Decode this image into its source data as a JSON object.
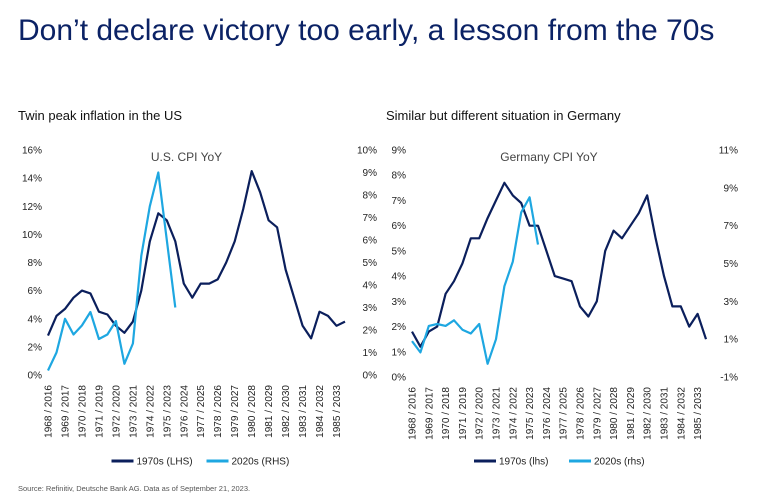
{
  "title": "Don’t declare victory too early, a lesson from the 70s",
  "source": "Source: Refinitiv, Deutsche Bank AG. Data as of September 21, 2023.",
  "chart_data": [
    {
      "type": "line",
      "title": "Twin peak inflation in the US",
      "annotation": "U.S. CPI YoY",
      "categories": [
        "1968 / 2016",
        null,
        "1969 / 2017",
        null,
        "1970 / 2018",
        null,
        "1971 / 2019",
        null,
        "1972 / 2020",
        null,
        "1973 / 2021",
        null,
        "1974 / 2022",
        null,
        "1975 / 2023",
        null,
        "1976 / 2024",
        null,
        "1977 / 2025",
        null,
        "1978 / 2026",
        null,
        "1979 / 2027",
        null,
        "1980 / 2028",
        null,
        "1981 / 2029",
        null,
        "1982 / 2030",
        null,
        "1983 / 2031",
        null,
        "1984 / 2032",
        null,
        "1985 / 2033",
        null
      ],
      "series": [
        {
          "name": "1970s (LHS)",
          "color": "#0b1f5c",
          "values": [
            2.8,
            4.2,
            4.7,
            5.5,
            6.0,
            5.8,
            4.5,
            4.3,
            3.5,
            3.0,
            3.8,
            6.0,
            9.5,
            11.5,
            11.0,
            9.5,
            6.5,
            5.5,
            6.5,
            6.5,
            6.8,
            8.0,
            9.5,
            11.8,
            14.5,
            13.0,
            11.0,
            10.5,
            7.5,
            5.5,
            3.5,
            2.6,
            4.5,
            4.2,
            3.5,
            3.8
          ]
        },
        {
          "name": "2020s (RHS)",
          "color": "#1ea7e1",
          "axis": "y2",
          "values": [
            0.2,
            1.0,
            2.5,
            1.8,
            2.2,
            2.8,
            1.6,
            1.8,
            2.4,
            0.5,
            1.4,
            5.3,
            7.5,
            9.0,
            6.0,
            3.0,
            null,
            null,
            null,
            null,
            null,
            null,
            null,
            null,
            null,
            null,
            null,
            null,
            null,
            null,
            null,
            null,
            null,
            null,
            null,
            null
          ]
        }
      ],
      "ylim": [
        0,
        16
      ],
      "yticks": [
        {
          "value": 0,
          "label": "0%"
        },
        {
          "value": 2,
          "label": "2%"
        },
        {
          "value": 4,
          "label": "4%"
        },
        {
          "value": 6,
          "label": "6%"
        },
        {
          "value": 8,
          "label": "8%"
        },
        {
          "value": 10,
          "label": "10%"
        },
        {
          "value": 12,
          "label": "12%"
        },
        {
          "value": 14,
          "label": "14%"
        },
        {
          "value": 16,
          "label": "16%"
        }
      ],
      "y2lim": [
        0,
        10
      ],
      "y2ticks": [
        {
          "value": 0,
          "label": "0%"
        },
        {
          "value": 1,
          "label": "1%"
        },
        {
          "value": 2,
          "label": "2%"
        },
        {
          "value": 3,
          "label": "3%"
        },
        {
          "value": 4,
          "label": "4%"
        },
        {
          "value": 5,
          "label": "5%"
        },
        {
          "value": 6,
          "label": "6%"
        },
        {
          "value": 7,
          "label": "7%"
        },
        {
          "value": 8,
          "label": "8%"
        },
        {
          "value": 9,
          "label": "9%"
        },
        {
          "value": 10,
          "label": "10%"
        }
      ]
    },
    {
      "type": "line",
      "title": "Similar but different situation in Germany",
      "annotation": "Germany CPI YoY",
      "categories": [
        "1968 / 2016",
        null,
        "1969 / 2017",
        null,
        "1970 / 2018",
        null,
        "1971 / 2019",
        null,
        "1972 / 2020",
        null,
        "1973 / 2021",
        null,
        "1974 / 2022",
        null,
        "1975 / 2023",
        null,
        "1976 / 2024",
        null,
        "1977 / 2025",
        null,
        "1978 / 2026",
        null,
        "1979 / 2027",
        null,
        "1980 / 2028",
        null,
        "1981 / 2029",
        null,
        "1982 / 2030",
        null,
        "1983 / 2031",
        null,
        "1984 / 2032",
        null,
        "1985 / 2033",
        null
      ],
      "series": [
        {
          "name": "1970s (lhs)",
          "color": "#0b1f5c",
          "values": [
            1.8,
            1.2,
            1.8,
            2.0,
            3.3,
            3.8,
            4.5,
            5.5,
            5.5,
            6.3,
            7.0,
            7.7,
            7.2,
            6.9,
            6.0,
            6.0,
            5.0,
            4.0,
            3.9,
            3.8,
            2.8,
            2.4,
            3.0,
            5.0,
            5.8,
            5.5,
            6.0,
            6.5,
            7.2,
            5.5,
            4.0,
            2.8,
            2.8,
            2.0,
            2.5,
            1.5
          ]
        },
        {
          "name": "2020s (rhs)",
          "color": "#1ea7e1",
          "axis": "y2",
          "values": [
            0.9,
            0.3,
            1.7,
            1.8,
            1.7,
            2.0,
            1.5,
            1.3,
            1.8,
            -0.3,
            1.0,
            3.8,
            5.1,
            7.7,
            8.5,
            6.0,
            null,
            null,
            null,
            null,
            null,
            null,
            null,
            null,
            null,
            null,
            null,
            null,
            null,
            null,
            null,
            null,
            null,
            null,
            null,
            null
          ]
        }
      ],
      "ylim": [
        0,
        9
      ],
      "yticks": [
        {
          "value": 0,
          "label": "0%"
        },
        {
          "value": 1,
          "label": "1%"
        },
        {
          "value": 2,
          "label": "2%"
        },
        {
          "value": 3,
          "label": "3%"
        },
        {
          "value": 4,
          "label": "4%"
        },
        {
          "value": 5,
          "label": "5%"
        },
        {
          "value": 6,
          "label": "6%"
        },
        {
          "value": 7,
          "label": "7%"
        },
        {
          "value": 8,
          "label": "8%"
        },
        {
          "value": 9,
          "label": "9%"
        }
      ],
      "y2lim": [
        -1,
        11
      ],
      "y2ticks": [
        {
          "value": -1,
          "label": "-1%"
        },
        {
          "value": 1,
          "label": "1%"
        },
        {
          "value": 3,
          "label": "3%"
        },
        {
          "value": 5,
          "label": "5%"
        },
        {
          "value": 7,
          "label": "7%"
        },
        {
          "value": 9,
          "label": "9%"
        },
        {
          "value": 11,
          "label": "11%"
        }
      ]
    }
  ]
}
